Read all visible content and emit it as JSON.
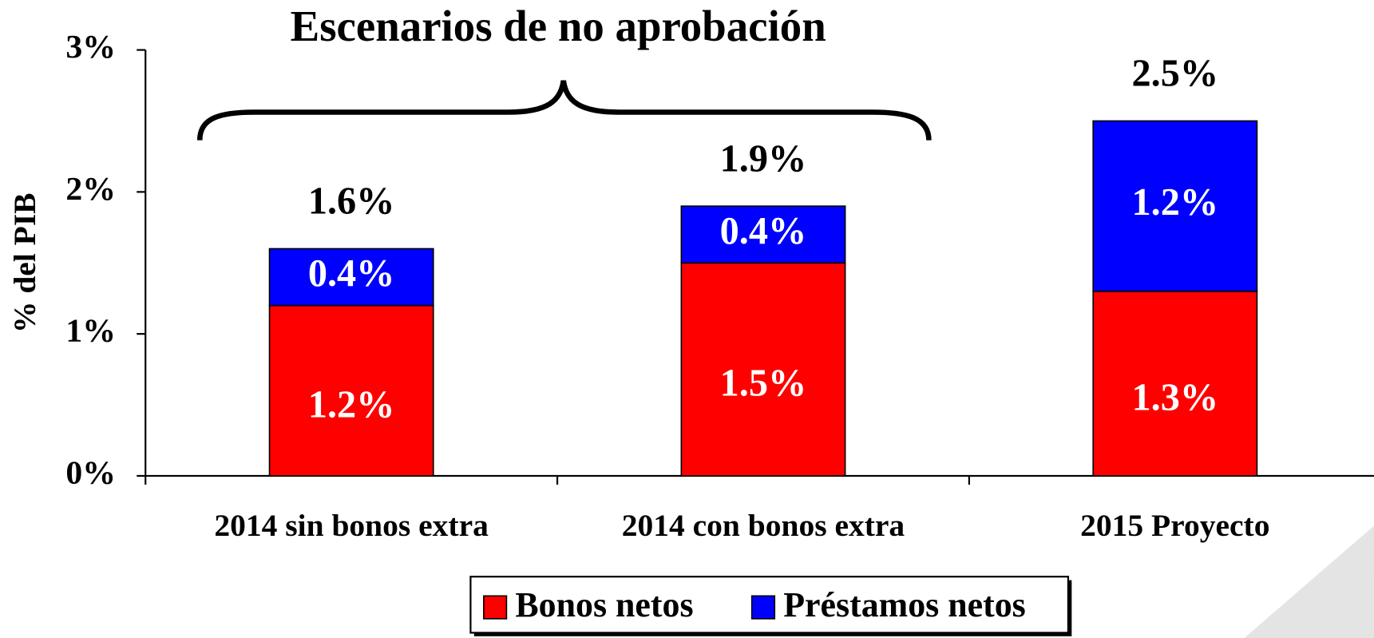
{
  "chart_data": {
    "type": "stacked_bar",
    "title": "Escenarios de no aprobación",
    "y_label": "% del PIB",
    "categories": [
      "2014 sin bonos extra",
      "2014 con bonos extra",
      "2015 Proyecto"
    ],
    "series": [
      {
        "name": "Bonos netos",
        "color": "#ff0000",
        "values": [
          1.2,
          1.5,
          1.3
        ],
        "value_labels": [
          "1.2%",
          "1.5%",
          "1.3%"
        ]
      },
      {
        "name": "Préstamos netos",
        "color": "#0000ff",
        "values": [
          0.4,
          0.4,
          1.2
        ],
        "value_labels": [
          "0.4%",
          "0.4%",
          "1.2%"
        ]
      }
    ],
    "totals": [
      1.6,
      1.9,
      2.5
    ],
    "total_labels": [
      "1.6%",
      "1.9%",
      "2.5%"
    ],
    "ylim": [
      0,
      3
    ],
    "yticks": [
      {
        "value": 0,
        "label": "0%"
      },
      {
        "value": 1,
        "label": "1%"
      },
      {
        "value": 2,
        "label": "2%"
      },
      {
        "value": 3,
        "label": "3%"
      }
    ],
    "legend": "bottom"
  }
}
